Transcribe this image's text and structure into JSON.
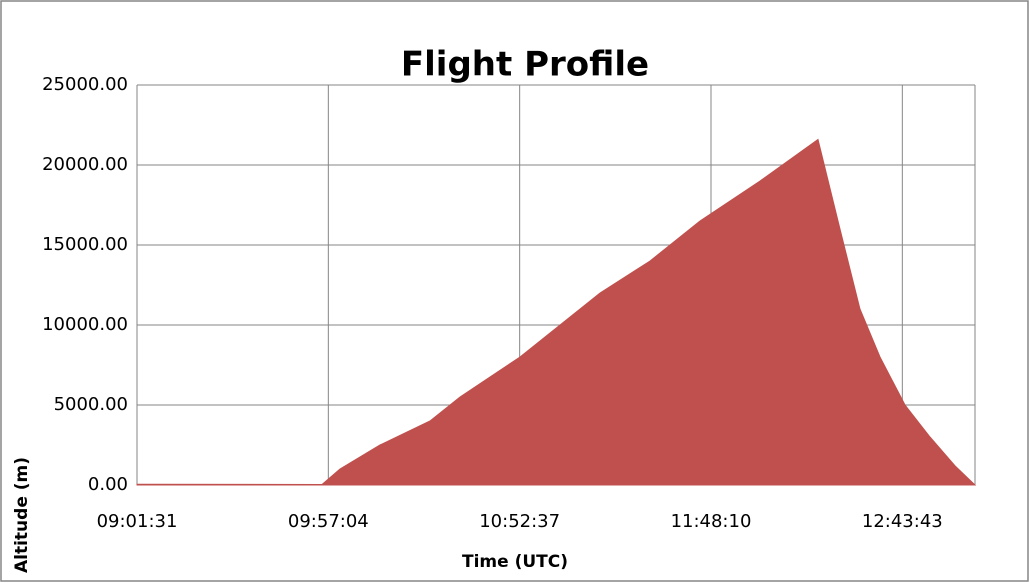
{
  "chart_data": {
    "type": "area",
    "title": "Flight Profile",
    "xlabel": "Time (UTC)",
    "ylabel": "Altitude (m)",
    "x": [
      32491,
      35714,
      36027,
      36724,
      37595,
      38118,
      39163,
      39860,
      40557,
      41428,
      42298,
      43344,
      44354,
      44737,
      45085,
      45434,
      45870,
      46305,
      46741,
      47089
    ],
    "values": [
      50,
      30,
      1000,
      2500,
      4000,
      5500,
      8000,
      10000,
      12000,
      14000,
      16500,
      19000,
      21600,
      16000,
      11000,
      8000,
      5000,
      3000,
      1200,
      0
    ],
    "color": "#c0504d",
    "xlim": [
      32491,
      47089
    ],
    "xticks": [
      {
        "value": 32491,
        "label": "09:01:31"
      },
      {
        "value": 35824,
        "label": "09:57:04"
      },
      {
        "value": 39157,
        "label": "10:52:37"
      },
      {
        "value": 42490,
        "label": "11:48:10"
      },
      {
        "value": 45823,
        "label": "12:43:43"
      }
    ],
    "ylim": [
      0,
      25000
    ],
    "yticks": [
      {
        "value": 0,
        "label": "0.00"
      },
      {
        "value": 5000,
        "label": "5000.00"
      },
      {
        "value": 10000,
        "label": "10000.00"
      },
      {
        "value": 15000,
        "label": "15000.00"
      },
      {
        "value": 20000,
        "label": "20000.00"
      },
      {
        "value": 25000,
        "label": "25000.00"
      }
    ],
    "grid": true
  }
}
